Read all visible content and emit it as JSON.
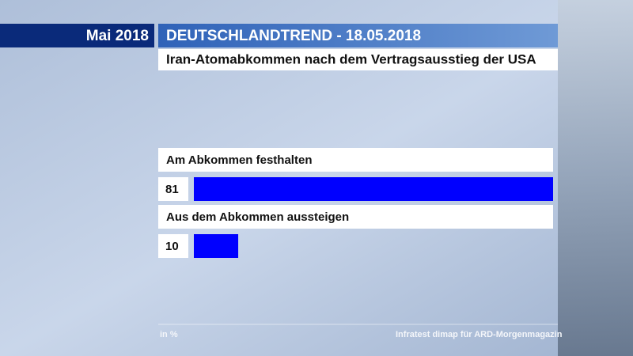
{
  "chart_data": {
    "type": "hbar",
    "header": "Mai 2018",
    "title": "DEUTSCHLANDTREND - 18.05.2018",
    "subtitle": "Iran-Atomabkommen nach dem Vertragsausstieg der USA",
    "categories": [
      "Am Abkommen festhalten",
      "Aus dem Abkommen aussteigen"
    ],
    "values": [
      81,
      10
    ],
    "color": "#0000ff",
    "unit_note": "in %",
    "source": "Infratest dimap für ARD-Morgenmagazin"
  }
}
